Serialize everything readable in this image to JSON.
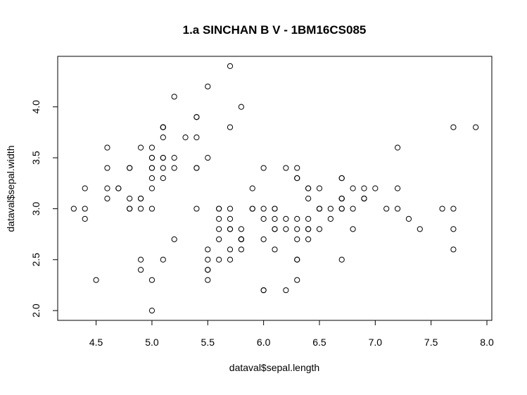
{
  "chart_data": {
    "type": "scatter",
    "title": "1.a SINCHAN B V - 1BM16CS085",
    "xlabel": "dataval$sepal.length",
    "ylabel": "dataval$sepal.width",
    "xlim": [
      4.3,
      7.9
    ],
    "ylim": [
      2.0,
      4.4
    ],
    "x_ticks": [
      4.5,
      5.0,
      5.5,
      6.0,
      6.5,
      7.0,
      7.5,
      8.0
    ],
    "y_ticks": [
      2.0,
      2.5,
      3.0,
      3.5,
      4.0
    ],
    "x_tick_labels": [
      "4.5",
      "5.0",
      "5.5",
      "6.0",
      "6.5",
      "7.0",
      "7.5",
      "8.0"
    ],
    "y_tick_labels": [
      "2.0",
      "2.5",
      "3.0",
      "3.5",
      "4.0"
    ],
    "grid": false,
    "marker": "open-circle",
    "points": [
      [
        5.1,
        3.5
      ],
      [
        4.9,
        3.0
      ],
      [
        4.7,
        3.2
      ],
      [
        4.6,
        3.1
      ],
      [
        5.0,
        3.6
      ],
      [
        5.4,
        3.9
      ],
      [
        4.6,
        3.4
      ],
      [
        5.0,
        3.4
      ],
      [
        4.4,
        2.9
      ],
      [
        4.9,
        3.1
      ],
      [
        5.4,
        3.7
      ],
      [
        4.8,
        3.4
      ],
      [
        4.8,
        3.0
      ],
      [
        4.3,
        3.0
      ],
      [
        5.8,
        4.0
      ],
      [
        5.7,
        4.4
      ],
      [
        5.4,
        3.9
      ],
      [
        5.1,
        3.5
      ],
      [
        5.7,
        3.8
      ],
      [
        5.1,
        3.8
      ],
      [
        5.4,
        3.4
      ],
      [
        5.1,
        3.7
      ],
      [
        4.6,
        3.6
      ],
      [
        5.1,
        3.3
      ],
      [
        4.8,
        3.4
      ],
      [
        5.0,
        3.0
      ],
      [
        5.0,
        3.4
      ],
      [
        5.2,
        3.5
      ],
      [
        5.2,
        3.4
      ],
      [
        4.7,
        3.2
      ],
      [
        4.8,
        3.1
      ],
      [
        5.4,
        3.4
      ],
      [
        5.2,
        4.1
      ],
      [
        5.5,
        4.2
      ],
      [
        4.9,
        3.1
      ],
      [
        5.0,
        3.2
      ],
      [
        5.5,
        3.5
      ],
      [
        4.9,
        3.6
      ],
      [
        4.4,
        3.0
      ],
      [
        5.1,
        3.4
      ],
      [
        5.0,
        3.5
      ],
      [
        4.5,
        2.3
      ],
      [
        4.4,
        3.2
      ],
      [
        5.0,
        3.5
      ],
      [
        5.1,
        3.8
      ],
      [
        4.8,
        3.0
      ],
      [
        5.1,
        3.8
      ],
      [
        4.6,
        3.2
      ],
      [
        5.3,
        3.7
      ],
      [
        5.0,
        3.3
      ],
      [
        7.0,
        3.2
      ],
      [
        6.4,
        3.2
      ],
      [
        6.9,
        3.1
      ],
      [
        5.5,
        2.3
      ],
      [
        6.5,
        2.8
      ],
      [
        5.7,
        2.8
      ],
      [
        6.3,
        3.3
      ],
      [
        4.9,
        2.4
      ],
      [
        6.6,
        2.9
      ],
      [
        5.2,
        2.7
      ],
      [
        5.0,
        2.0
      ],
      [
        5.9,
        3.0
      ],
      [
        6.0,
        2.2
      ],
      [
        6.1,
        2.9
      ],
      [
        5.6,
        2.9
      ],
      [
        6.7,
        3.1
      ],
      [
        5.6,
        3.0
      ],
      [
        5.8,
        2.7
      ],
      [
        6.2,
        2.2
      ],
      [
        5.6,
        2.5
      ],
      [
        5.9,
        3.2
      ],
      [
        6.1,
        2.8
      ],
      [
        6.3,
        2.5
      ],
      [
        6.1,
        2.8
      ],
      [
        6.4,
        2.9
      ],
      [
        6.6,
        3.0
      ],
      [
        6.8,
        2.8
      ],
      [
        6.7,
        3.0
      ],
      [
        6.0,
        2.9
      ],
      [
        5.7,
        2.6
      ],
      [
        5.5,
        2.4
      ],
      [
        5.5,
        2.4
      ],
      [
        5.8,
        2.7
      ],
      [
        6.0,
        2.7
      ],
      [
        5.4,
        3.0
      ],
      [
        6.0,
        3.4
      ],
      [
        6.7,
        3.1
      ],
      [
        6.3,
        2.3
      ],
      [
        5.6,
        3.0
      ],
      [
        5.5,
        2.5
      ],
      [
        5.5,
        2.6
      ],
      [
        6.1,
        3.0
      ],
      [
        5.8,
        2.6
      ],
      [
        5.0,
        2.3
      ],
      [
        5.6,
        2.7
      ],
      [
        5.7,
        3.0
      ],
      [
        5.7,
        2.9
      ],
      [
        6.2,
        2.9
      ],
      [
        5.1,
        2.5
      ],
      [
        5.7,
        2.8
      ],
      [
        6.3,
        3.3
      ],
      [
        5.8,
        2.7
      ],
      [
        7.1,
        3.0
      ],
      [
        6.3,
        2.9
      ],
      [
        6.5,
        3.0
      ],
      [
        7.6,
        3.0
      ],
      [
        4.9,
        2.5
      ],
      [
        7.3,
        2.9
      ],
      [
        6.7,
        2.5
      ],
      [
        7.2,
        3.6
      ],
      [
        6.5,
        3.2
      ],
      [
        6.4,
        2.7
      ],
      [
        6.8,
        3.0
      ],
      [
        5.7,
        2.5
      ],
      [
        5.8,
        2.8
      ],
      [
        6.4,
        3.2
      ],
      [
        6.5,
        3.0
      ],
      [
        7.7,
        3.8
      ],
      [
        7.7,
        2.6
      ],
      [
        6.0,
        2.2
      ],
      [
        6.9,
        3.2
      ],
      [
        5.6,
        2.8
      ],
      [
        7.7,
        2.8
      ],
      [
        6.3,
        2.7
      ],
      [
        6.7,
        3.3
      ],
      [
        7.2,
        3.2
      ],
      [
        6.2,
        2.8
      ],
      [
        6.1,
        3.0
      ],
      [
        6.4,
        2.8
      ],
      [
        7.2,
        3.0
      ],
      [
        7.4,
        2.8
      ],
      [
        7.9,
        3.8
      ],
      [
        6.4,
        2.8
      ],
      [
        6.3,
        2.8
      ],
      [
        6.1,
        2.6
      ],
      [
        7.7,
        3.0
      ],
      [
        6.3,
        3.4
      ],
      [
        6.4,
        3.1
      ],
      [
        6.0,
        3.0
      ],
      [
        6.9,
        3.1
      ],
      [
        6.7,
        3.1
      ],
      [
        6.9,
        3.1
      ],
      [
        5.8,
        2.7
      ],
      [
        6.8,
        3.2
      ],
      [
        6.7,
        3.3
      ],
      [
        6.7,
        3.0
      ],
      [
        6.3,
        2.5
      ],
      [
        6.5,
        3.0
      ],
      [
        6.2,
        3.4
      ],
      [
        5.9,
        3.0
      ]
    ]
  }
}
